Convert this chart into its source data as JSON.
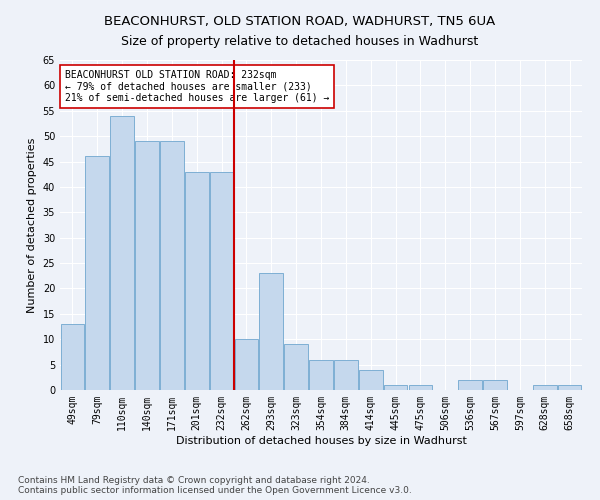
{
  "title1": "BEACONHURST, OLD STATION ROAD, WADHURST, TN5 6UA",
  "title2": "Size of property relative to detached houses in Wadhurst",
  "xlabel": "Distribution of detached houses by size in Wadhurst",
  "ylabel": "Number of detached properties",
  "categories": [
    "49sqm",
    "79sqm",
    "110sqm",
    "140sqm",
    "171sqm",
    "201sqm",
    "232sqm",
    "262sqm",
    "293sqm",
    "323sqm",
    "354sqm",
    "384sqm",
    "414sqm",
    "445sqm",
    "475sqm",
    "506sqm",
    "536sqm",
    "567sqm",
    "597sqm",
    "628sqm",
    "658sqm"
  ],
  "values": [
    13,
    46,
    54,
    49,
    49,
    43,
    43,
    10,
    23,
    9,
    6,
    6,
    4,
    1,
    1,
    0,
    2,
    2,
    0,
    1,
    1
  ],
  "bar_color": "#c5d8ed",
  "bar_edge_color": "#7eafd4",
  "highlight_index": 6,
  "highlight_line_color": "#cc0000",
  "annotation_text": "BEACONHURST OLD STATION ROAD: 232sqm\n← 79% of detached houses are smaller (233)\n21% of semi-detached houses are larger (61) →",
  "annotation_box_color": "#ffffff",
  "annotation_box_edge": "#cc0000",
  "ylim": [
    0,
    65
  ],
  "yticks": [
    0,
    5,
    10,
    15,
    20,
    25,
    30,
    35,
    40,
    45,
    50,
    55,
    60,
    65
  ],
  "footer": "Contains HM Land Registry data © Crown copyright and database right 2024.\nContains public sector information licensed under the Open Government Licence v3.0.",
  "bg_color": "#eef2f9",
  "grid_color": "#ffffff",
  "title_fontsize": 9.5,
  "subtitle_fontsize": 9,
  "axis_label_fontsize": 8,
  "tick_fontsize": 7,
  "annot_fontsize": 7,
  "footer_fontsize": 6.5
}
